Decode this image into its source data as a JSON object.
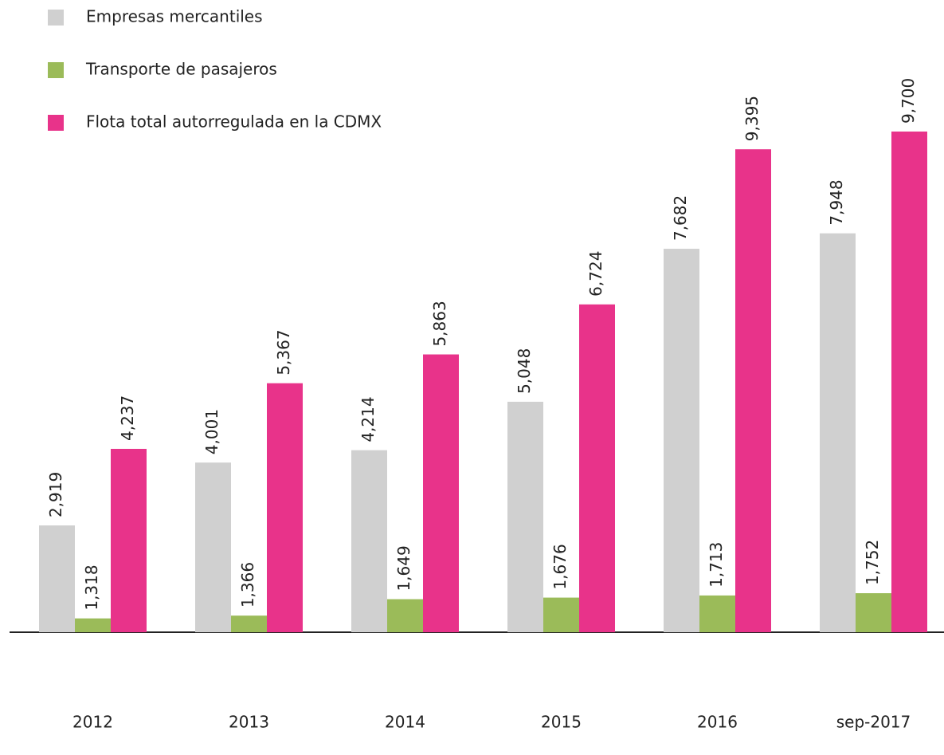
{
  "chart_data": {
    "type": "bar",
    "categories": [
      "2012",
      "2013",
      "2014",
      "2015",
      "2016",
      "sep-2017"
    ],
    "series": [
      {
        "name": "Empresas mercantiles",
        "color": "#d0d0d0",
        "values": [
          2919,
          4001,
          4214,
          5048,
          7682,
          7948
        ],
        "value_labels": [
          "2,919",
          "4,001",
          "4,214",
          "5,048",
          "7,682",
          "7,948"
        ]
      },
      {
        "name": "Transporte de pasajeros",
        "color": "#9bbb59",
        "values": [
          1318,
          1366,
          1649,
          1676,
          1713,
          1752
        ],
        "value_labels": [
          "1,318",
          "1,366",
          "1,649",
          "1,676",
          "1,713",
          "1,752"
        ]
      },
      {
        "name": "Flota total autorregulada en la CDMX",
        "color": "#e8338a",
        "values": [
          4237,
          5367,
          5863,
          6724,
          9395,
          9700
        ],
        "value_labels": [
          "4,237",
          "5,367",
          "5,863",
          "6,724",
          "9,395",
          "9,700"
        ]
      }
    ],
    "ylim": [
      1080,
      9906
    ],
    "legend": "top-left"
  }
}
